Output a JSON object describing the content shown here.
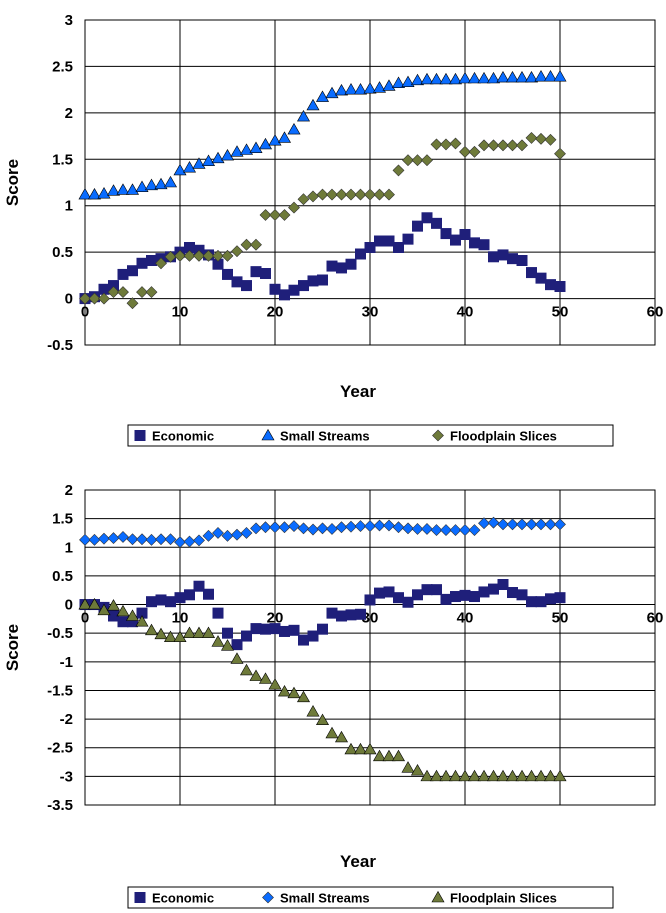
{
  "chart_data": [
    {
      "type": "scatter",
      "title": "",
      "xlabel": "Year",
      "ylabel": "Score",
      "xlim": [
        0,
        60
      ],
      "ylim": [
        -0.5,
        3
      ],
      "xticks": [
        0,
        10,
        20,
        30,
        40,
        50,
        60
      ],
      "yticks": [
        -0.5,
        0,
        0.5,
        1,
        1.5,
        2,
        2.5,
        3
      ],
      "grid": true,
      "legend": "bottom",
      "series": [
        {
          "name": "Economic",
          "marker": "square",
          "color": "#1f1f7a",
          "x": [
            0,
            1,
            2,
            3,
            4,
            5,
            6,
            7,
            8,
            9,
            10,
            11,
            12,
            13,
            14,
            15,
            16,
            17,
            18,
            19,
            20,
            21,
            22,
            23,
            24,
            25,
            26,
            27,
            28,
            29,
            30,
            31,
            32,
            33,
            34,
            35,
            36,
            37,
            38,
            39,
            40,
            41,
            42,
            43,
            44,
            45,
            46,
            47,
            48,
            49,
            50
          ],
          "y": [
            0,
            0.02,
            0.1,
            0.14,
            0.26,
            0.3,
            0.38,
            0.41,
            0.43,
            0.45,
            0.5,
            0.55,
            0.52,
            0.47,
            0.37,
            0.26,
            0.18,
            0.14,
            0.29,
            0.27,
            0.1,
            0.04,
            0.09,
            0.14,
            0.19,
            0.2,
            0.35,
            0.33,
            0.37,
            0.48,
            0.55,
            0.62,
            0.62,
            0.55,
            0.64,
            0.78,
            0.87,
            0.81,
            0.7,
            0.63,
            0.69,
            0.6,
            0.58,
            0.45,
            0.47,
            0.43,
            0.41,
            0.28,
            0.22,
            0.15,
            0.13
          ]
        },
        {
          "name": "Small Streams",
          "marker": "triangle",
          "color": "#0a6cff",
          "x": [
            0,
            1,
            2,
            3,
            4,
            5,
            6,
            7,
            8,
            9,
            10,
            11,
            12,
            13,
            14,
            15,
            16,
            17,
            18,
            19,
            20,
            21,
            22,
            23,
            24,
            25,
            26,
            27,
            28,
            29,
            30,
            31,
            32,
            33,
            34,
            35,
            36,
            37,
            38,
            39,
            40,
            41,
            42,
            43,
            44,
            45,
            46,
            47,
            48,
            49,
            50
          ],
          "y": [
            1.12,
            1.12,
            1.13,
            1.16,
            1.17,
            1.17,
            1.2,
            1.22,
            1.23,
            1.25,
            1.38,
            1.41,
            1.45,
            1.48,
            1.51,
            1.54,
            1.58,
            1.6,
            1.62,
            1.66,
            1.7,
            1.73,
            1.82,
            1.96,
            2.08,
            2.17,
            2.21,
            2.24,
            2.25,
            2.25,
            2.26,
            2.27,
            2.29,
            2.32,
            2.33,
            2.35,
            2.36,
            2.36,
            2.36,
            2.36,
            2.37,
            2.37,
            2.37,
            2.37,
            2.38,
            2.38,
            2.38,
            2.38,
            2.39,
            2.39,
            2.39
          ]
        },
        {
          "name": "Floodplain Slices",
          "marker": "diamond",
          "color": "#6e7a3a",
          "x": [
            0,
            1,
            2,
            3,
            4,
            5,
            6,
            7,
            8,
            9,
            10,
            11,
            12,
            13,
            14,
            15,
            16,
            17,
            18,
            19,
            20,
            21,
            22,
            23,
            24,
            25,
            26,
            27,
            28,
            29,
            30,
            31,
            32,
            33,
            34,
            35,
            36,
            37,
            38,
            39,
            40,
            41,
            42,
            43,
            44,
            45,
            46,
            47,
            48,
            49,
            50
          ],
          "y": [
            0,
            0,
            0,
            0.07,
            0.07,
            -0.05,
            0.07,
            0.07,
            0.38,
            0.45,
            0.46,
            0.46,
            0.46,
            0.46,
            0.46,
            0.46,
            0.51,
            0.58,
            0.58,
            0.9,
            0.9,
            0.9,
            0.98,
            1.07,
            1.1,
            1.12,
            1.12,
            1.12,
            1.12,
            1.12,
            1.12,
            1.12,
            1.12,
            1.38,
            1.49,
            1.49,
            1.49,
            1.66,
            1.66,
            1.67,
            1.58,
            1.58,
            1.65,
            1.65,
            1.65,
            1.65,
            1.65,
            1.73,
            1.72,
            1.71,
            1.56
          ]
        }
      ]
    },
    {
      "type": "scatter",
      "title": "",
      "xlabel": "Year",
      "ylabel": "Score",
      "xlim": [
        0,
        60
      ],
      "ylim": [
        -3.5,
        2
      ],
      "xticks": [
        0,
        10,
        20,
        30,
        40,
        50,
        60
      ],
      "yticks": [
        -3.5,
        -3,
        -2.5,
        -2,
        -1.5,
        -1,
        -0.5,
        0,
        0.5,
        1,
        1.5,
        2
      ],
      "grid": true,
      "legend": "bottom",
      "series": [
        {
          "name": "Economic",
          "marker": "square",
          "color": "#1f1f7a",
          "x": [
            0,
            1,
            2,
            3,
            4,
            5,
            6,
            7,
            8,
            9,
            10,
            11,
            12,
            13,
            14,
            15,
            16,
            17,
            18,
            19,
            20,
            21,
            22,
            23,
            24,
            25,
            26,
            27,
            28,
            29,
            30,
            31,
            32,
            33,
            34,
            35,
            36,
            37,
            38,
            39,
            40,
            41,
            42,
            43,
            44,
            45,
            46,
            47,
            48,
            49,
            50
          ],
          "y": [
            0,
            0,
            -0.05,
            -0.2,
            -0.3,
            -0.3,
            -0.15,
            0.05,
            0.08,
            0.05,
            0.12,
            0.17,
            0.32,
            0.18,
            -0.15,
            -0.5,
            -0.7,
            -0.55,
            -0.42,
            -0.43,
            -0.42,
            -0.47,
            -0.45,
            -0.62,
            -0.55,
            -0.43,
            -0.15,
            -0.2,
            -0.18,
            -0.17,
            0.08,
            0.2,
            0.22,
            0.12,
            0.04,
            0.17,
            0.26,
            0.26,
            0.09,
            0.14,
            0.16,
            0.14,
            0.22,
            0.27,
            0.35,
            0.21,
            0.17,
            0.05,
            0.05,
            0.1,
            0.12
          ]
        },
        {
          "name": "Small Streams",
          "marker": "diamond",
          "color": "#0a6cff",
          "x": [
            0,
            1,
            2,
            3,
            4,
            5,
            6,
            7,
            8,
            9,
            10,
            11,
            12,
            13,
            14,
            15,
            16,
            17,
            18,
            19,
            20,
            21,
            22,
            23,
            24,
            25,
            26,
            27,
            28,
            29,
            30,
            31,
            32,
            33,
            34,
            35,
            36,
            37,
            38,
            39,
            40,
            41,
            42,
            43,
            44,
            45,
            46,
            47,
            48,
            49,
            50
          ],
          "y": [
            1.13,
            1.13,
            1.15,
            1.16,
            1.18,
            1.14,
            1.14,
            1.13,
            1.14,
            1.14,
            1.09,
            1.1,
            1.12,
            1.2,
            1.25,
            1.2,
            1.22,
            1.25,
            1.33,
            1.35,
            1.35,
            1.35,
            1.37,
            1.33,
            1.31,
            1.33,
            1.32,
            1.35,
            1.36,
            1.37,
            1.37,
            1.38,
            1.38,
            1.35,
            1.33,
            1.32,
            1.32,
            1.3,
            1.3,
            1.3,
            1.3,
            1.3,
            1.42,
            1.43,
            1.4,
            1.4,
            1.4,
            1.4,
            1.4,
            1.4,
            1.4
          ]
        },
        {
          "name": "Floodplain Slices",
          "marker": "triangle",
          "color": "#6e7a3a",
          "x": [
            0,
            1,
            2,
            3,
            4,
            5,
            6,
            7,
            8,
            9,
            10,
            11,
            12,
            13,
            14,
            15,
            16,
            17,
            18,
            19,
            20,
            21,
            22,
            23,
            24,
            25,
            26,
            27,
            28,
            29,
            30,
            31,
            32,
            33,
            34,
            35,
            36,
            37,
            38,
            39,
            40,
            41,
            42,
            43,
            44,
            45,
            46,
            47,
            48,
            49,
            50
          ],
          "y": [
            0,
            0,
            -0.1,
            -0.02,
            -0.12,
            -0.2,
            -0.3,
            -0.45,
            -0.52,
            -0.57,
            -0.57,
            -0.5,
            -0.5,
            -0.5,
            -0.65,
            -0.72,
            -0.95,
            -1.15,
            -1.25,
            -1.3,
            -1.4,
            -1.52,
            -1.55,
            -1.62,
            -1.87,
            -2.02,
            -2.25,
            -2.32,
            -2.53,
            -2.53,
            -2.53,
            -2.65,
            -2.65,
            -2.65,
            -2.85,
            -2.9,
            -3,
            -3,
            -3,
            -3,
            -3,
            -3,
            -3,
            -3,
            -3,
            -3,
            -3,
            -3,
            -3,
            -3,
            -3
          ]
        }
      ]
    }
  ]
}
